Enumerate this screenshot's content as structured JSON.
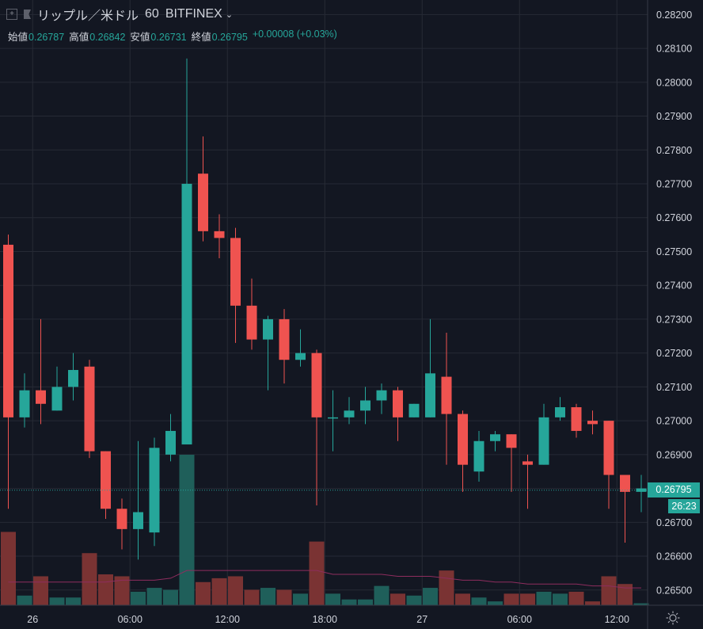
{
  "header": {
    "symbol": "リップル／米ドル",
    "interval": "60",
    "exchange": "BITFINEX",
    "add_icon": "plus-square-icon",
    "flag_icon": "flag-icon",
    "dropdown_icon": "chevron-down-icon"
  },
  "ohlc": {
    "open_label": "始値",
    "open": "0.26787",
    "high_label": "高値",
    "high": "0.26842",
    "low_label": "安値",
    "low": "0.26731",
    "close_label": "終値",
    "close": "0.26795",
    "change": "+0.00008 (+0.03%)"
  },
  "price_axis": {
    "last_price": "0.26795",
    "countdown": "26:23"
  },
  "time_axis": {
    "settings_icon": "sun-gear-icon"
  },
  "colors": {
    "background": "#131722",
    "grid": "#262a35",
    "up": "#26a69a",
    "down": "#ef5350",
    "volume_up": "#1f5f5a",
    "volume_down": "#7a3333",
    "volume_ma": "#8e2d5e"
  },
  "chart_data": {
    "type": "candlestick",
    "interval_minutes": 60,
    "y_ticks": [
      0.265,
      0.266,
      0.267,
      0.268,
      0.269,
      0.27,
      0.271,
      0.272,
      0.273,
      0.274,
      0.275,
      0.276,
      0.277,
      0.278,
      0.279,
      0.28,
      0.281,
      0.282
    ],
    "y_tick_labels": [
      "0.26500",
      "0.26600",
      "0.26700",
      "0.26800",
      "0.26900",
      "0.27000",
      "0.27100",
      "0.27200",
      "0.27300",
      "0.27400",
      "0.27500",
      "0.27600",
      "0.27700",
      "0.27800",
      "0.27900",
      "0.28000",
      "0.28100",
      "0.28200"
    ],
    "ylim": [
      0.26455,
      0.28243
    ],
    "x_ticks": [
      {
        "bar": 1.5,
        "label": "26"
      },
      {
        "bar": 7.5,
        "label": "06:00"
      },
      {
        "bar": 13.5,
        "label": "12:00"
      },
      {
        "bar": 19.5,
        "label": "18:00"
      },
      {
        "bar": 25.5,
        "label": "27"
      },
      {
        "bar": 31.5,
        "label": "06:00"
      },
      {
        "bar": 37.5,
        "label": "12:00"
      }
    ],
    "current_price": 0.26795,
    "candles": [
      {
        "o": 0.2752,
        "h": 0.2755,
        "l": 0.2674,
        "c": 0.2701,
        "v": 38
      },
      {
        "o": 0.2701,
        "h": 0.2714,
        "l": 0.2698,
        "c": 0.2709,
        "v": 5
      },
      {
        "o": 0.2709,
        "h": 0.273,
        "l": 0.2699,
        "c": 0.2705,
        "v": 15
      },
      {
        "o": 0.2703,
        "h": 0.2716,
        "l": 0.2703,
        "c": 0.271,
        "v": 4
      },
      {
        "o": 0.271,
        "h": 0.272,
        "l": 0.2706,
        "c": 0.2715,
        "v": 4
      },
      {
        "o": 0.2716,
        "h": 0.2718,
        "l": 0.2689,
        "c": 0.2691,
        "v": 27
      },
      {
        "o": 0.2691,
        "h": 0.2691,
        "l": 0.2671,
        "c": 0.2674,
        "v": 16
      },
      {
        "o": 0.2674,
        "h": 0.2677,
        "l": 0.2662,
        "c": 0.2668,
        "v": 15
      },
      {
        "o": 0.2668,
        "h": 0.2694,
        "l": 0.2659,
        "c": 0.2673,
        "v": 7
      },
      {
        "o": 0.2667,
        "h": 0.2695,
        "l": 0.2663,
        "c": 0.2692,
        "v": 9
      },
      {
        "o": 0.269,
        "h": 0.2702,
        "l": 0.2688,
        "c": 0.2697,
        "v": 8
      },
      {
        "o": 0.2693,
        "h": 0.2807,
        "l": 0.2693,
        "c": 0.277,
        "v": 78
      },
      {
        "o": 0.2773,
        "h": 0.2784,
        "l": 0.2753,
        "c": 0.2756,
        "v": 12
      },
      {
        "o": 0.2756,
        "h": 0.2761,
        "l": 0.2748,
        "c": 0.2754,
        "v": 14
      },
      {
        "o": 0.2754,
        "h": 0.2757,
        "l": 0.2723,
        "c": 0.2734,
        "v": 15
      },
      {
        "o": 0.2734,
        "h": 0.2742,
        "l": 0.2721,
        "c": 0.2724,
        "v": 8
      },
      {
        "o": 0.2724,
        "h": 0.2731,
        "l": 0.2709,
        "c": 0.273,
        "v": 9
      },
      {
        "o": 0.273,
        "h": 0.2733,
        "l": 0.2711,
        "c": 0.2718,
        "v": 8
      },
      {
        "o": 0.2718,
        "h": 0.2727,
        "l": 0.2716,
        "c": 0.272,
        "v": 6
      },
      {
        "o": 0.272,
        "h": 0.2721,
        "l": 0.2675,
        "c": 0.2701,
        "v": 33
      },
      {
        "o": 0.2701,
        "h": 0.2709,
        "l": 0.2691,
        "c": 0.2701,
        "v": 6
      },
      {
        "o": 0.2701,
        "h": 0.2707,
        "l": 0.2699,
        "c": 0.2703,
        "v": 3
      },
      {
        "o": 0.2703,
        "h": 0.271,
        "l": 0.2699,
        "c": 0.2706,
        "v": 3
      },
      {
        "o": 0.2706,
        "h": 0.2711,
        "l": 0.2702,
        "c": 0.2709,
        "v": 10
      },
      {
        "o": 0.2709,
        "h": 0.271,
        "l": 0.2694,
        "c": 0.2701,
        "v": 6
      },
      {
        "o": 0.2701,
        "h": 0.2705,
        "l": 0.2701,
        "c": 0.2705,
        "v": 5
      },
      {
        "o": 0.2701,
        "h": 0.273,
        "l": 0.2701,
        "c": 0.2714,
        "v": 9
      },
      {
        "o": 0.2713,
        "h": 0.2726,
        "l": 0.2687,
        "c": 0.2702,
        "v": 18
      },
      {
        "o": 0.2702,
        "h": 0.2703,
        "l": 0.2679,
        "c": 0.2687,
        "v": 6
      },
      {
        "o": 0.2685,
        "h": 0.2697,
        "l": 0.2682,
        "c": 0.2694,
        "v": 4
      },
      {
        "o": 0.2694,
        "h": 0.2697,
        "l": 0.2691,
        "c": 0.2696,
        "v": 2
      },
      {
        "o": 0.2696,
        "h": 0.2696,
        "l": 0.2679,
        "c": 0.2692,
        "v": 6
      },
      {
        "o": 0.2688,
        "h": 0.269,
        "l": 0.2674,
        "c": 0.2687,
        "v": 6
      },
      {
        "o": 0.2687,
        "h": 0.2705,
        "l": 0.2687,
        "c": 0.2701,
        "v": 7
      },
      {
        "o": 0.2701,
        "h": 0.2707,
        "l": 0.27,
        "c": 0.2704,
        "v": 6
      },
      {
        "o": 0.2704,
        "h": 0.2705,
        "l": 0.2695,
        "c": 0.2697,
        "v": 7
      },
      {
        "o": 0.27,
        "h": 0.2703,
        "l": 0.2696,
        "c": 0.2699,
        "v": 2
      },
      {
        "o": 0.27,
        "h": 0.27,
        "l": 0.2674,
        "c": 0.2684,
        "v": 15
      },
      {
        "o": 0.2684,
        "h": 0.2684,
        "l": 0.2664,
        "c": 0.2679,
        "v": 11
      },
      {
        "o": 0.2679,
        "h": 0.2684,
        "l": 0.2673,
        "c": 0.268,
        "v": 1
      }
    ],
    "volume_ma": [
      12,
      12,
      12,
      12,
      12,
      12,
      12,
      13,
      13,
      13,
      14,
      18,
      18,
      18,
      18,
      18,
      18,
      18,
      18,
      18,
      16,
      16,
      16,
      16,
      15,
      15,
      15,
      14,
      13,
      13,
      12,
      12,
      11,
      11,
      11,
      11,
      10,
      10,
      9,
      9
    ]
  }
}
